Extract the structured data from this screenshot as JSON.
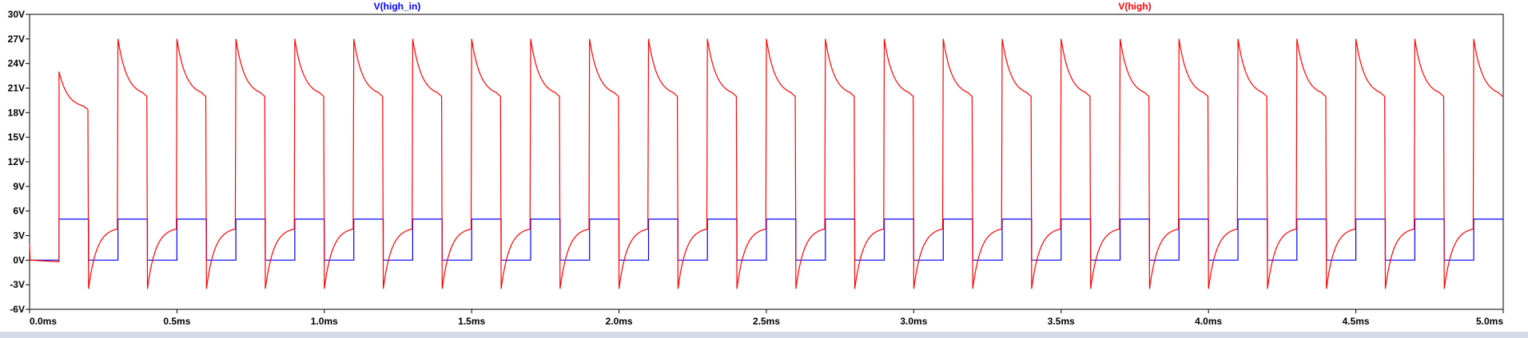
{
  "chart_data": {
    "type": "line",
    "title": "",
    "xlabel": "",
    "ylabel": "",
    "x_unit": "ms",
    "y_unit": "V",
    "xlim": [
      0.0,
      5.0
    ],
    "ylim": [
      -6,
      30
    ],
    "x_ticks": [
      "0.0ms",
      "0.5ms",
      "1.0ms",
      "1.5ms",
      "2.0ms",
      "2.5ms",
      "3.0ms",
      "3.5ms",
      "4.0ms",
      "4.5ms",
      "5.0ms"
    ],
    "y_ticks": [
      "30V",
      "27V",
      "24V",
      "21V",
      "18V",
      "15V",
      "12V",
      "9V",
      "6V",
      "3V",
      "0V",
      "-3V",
      "-6V"
    ],
    "grid": false,
    "legend_position": "top",
    "series": [
      {
        "name": "V(high_in)",
        "color": "#0000ff",
        "kind": "square_wave",
        "period_ms": 0.2,
        "first_rise_ms": 0.1,
        "duty": 0.5,
        "low_v": 0,
        "high_v": 5
      },
      {
        "name": "V(high)",
        "color": "#ff0000",
        "kind": "switching_transient",
        "period_ms": 0.2,
        "first_rise_ms": 0.1,
        "first_pulse_peak_v": 23,
        "first_pulse_end_v": 18.5,
        "peak_v": 27,
        "decay_end_v": 20,
        "undershoot_v": -3.5,
        "recovery_v": 3.8
      }
    ]
  }
}
